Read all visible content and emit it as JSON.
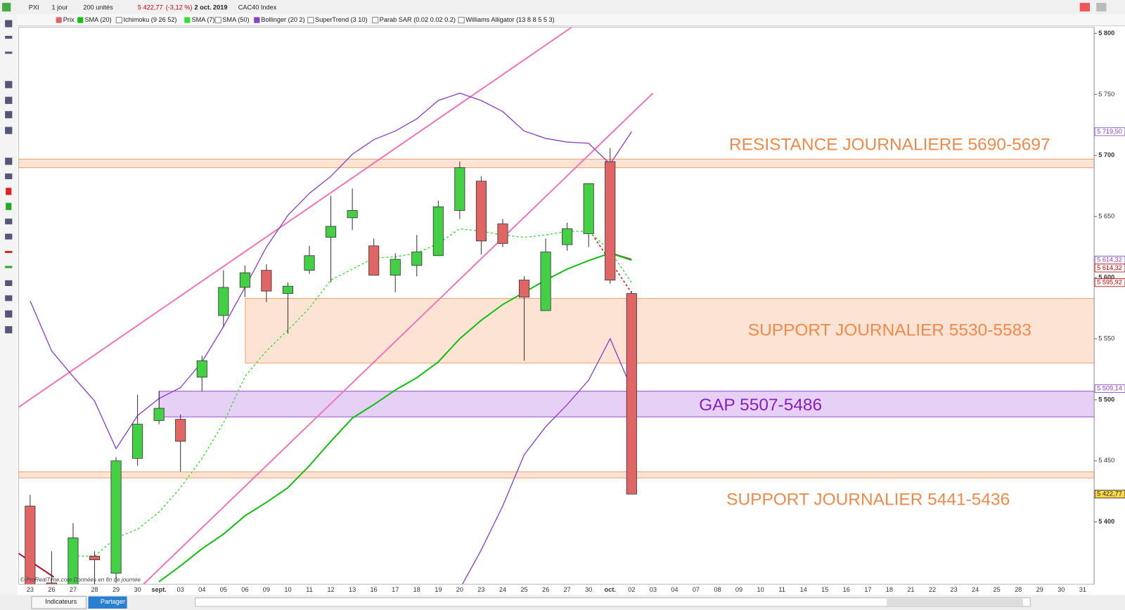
{
  "toolbar": {
    "symbol": "PXI",
    "period": "1 jour",
    "units": "200 unités",
    "price": "5 422,77",
    "change": "(-3,12 %)",
    "date": "2 oct. 2019",
    "instrument": "CAC40 Index",
    "indicators_off": [
      "Ichimoku (9 26 52)",
      "SMA (50)",
      "SuperTrend (3 10)",
      "Parab SAR (0.02 0.02 0.2)",
      "Williams Alligator (13 8 8 5 5 3)"
    ],
    "indicators_button": "Indicateurs",
    "share_button": "Partager"
  },
  "chart_data": {
    "type": "candlestick",
    "source": "© ProRealTime.com  Données en fin de journée",
    "categories": [
      "23",
      "26",
      "27",
      "28",
      "29",
      "30",
      "sept.",
      "03",
      "04",
      "05",
      "06",
      "09",
      "10",
      "11",
      "12",
      "13",
      "16",
      "17",
      "18",
      "19",
      "20",
      "23",
      "24",
      "25",
      "26",
      "27",
      "30",
      "oct.",
      "02",
      "03",
      "04",
      "07",
      "08",
      "09",
      "10",
      "11",
      "14",
      "15",
      "16",
      "17",
      "18",
      "21",
      "22",
      "23",
      "24",
      "25",
      "28",
      "29",
      "30",
      "31"
    ],
    "candles": {
      "name": "Prix",
      "up_color": "#44d044",
      "down_color": "#e06666",
      "open": [
        5413,
        5350,
        5340,
        5372,
        5358,
        5452,
        5483,
        5484,
        5518.5,
        5569,
        5592,
        5606,
        5587,
        5606,
        5633,
        5649,
        5626,
        5602,
        5610,
        5618,
        5655,
        5679,
        5644,
        5598,
        5573,
        5627,
        5636,
        5695,
        5587,
        null,
        null,
        null,
        null,
        null,
        null,
        null,
        null,
        null,
        null,
        null,
        null,
        null,
        null,
        null,
        null,
        null,
        null,
        null,
        null,
        null
      ],
      "high": [
        5422,
        5376,
        5399,
        5376,
        5453,
        5504,
        5507,
        5488,
        5536,
        5606,
        5610,
        5611,
        5596,
        5626,
        5667,
        5673,
        5632,
        5620,
        5635,
        5663,
        5695,
        5683,
        5648,
        5601,
        5632,
        5645,
        5677,
        5706,
        5589,
        null,
        null,
        null,
        null,
        null,
        null,
        null,
        null,
        null,
        null,
        null,
        null,
        null,
        null,
        null,
        null,
        null,
        null,
        null,
        null,
        null
      ],
      "low": [
        5340,
        5330,
        5335,
        5335,
        5350,
        5446,
        5480,
        5441,
        5507,
        5560,
        5584,
        5580,
        5554,
        5603,
        5596,
        5639,
        5602,
        5588,
        5601,
        5618,
        5648,
        5619,
        5625,
        5532,
        5573,
        5622,
        5625,
        5595,
        5422.77,
        null,
        null,
        null,
        null,
        null,
        null,
        null,
        null,
        null,
        null,
        null,
        null,
        null,
        null,
        null,
        null,
        null,
        null,
        null,
        null,
        null
      ],
      "close": [
        5345,
        5345,
        5387,
        5369,
        5450,
        5480,
        5493,
        5466,
        5532,
        5592,
        5604,
        5589,
        5593,
        5618,
        5642,
        5655,
        5602,
        5615,
        5621,
        5658,
        5690,
        5630,
        5628,
        5584,
        5621,
        5640,
        5677,
        5598,
        5422.77,
        null,
        null,
        null,
        null,
        null,
        null,
        null,
        null,
        null,
        null,
        null,
        null,
        null,
        null,
        null,
        null,
        null,
        null,
        null,
        null,
        null
      ]
    },
    "series": [
      {
        "name": "SMA (20)",
        "color": "#11c011",
        "style": "solid",
        "values": [
          null,
          null,
          null,
          null,
          null,
          null,
          5351,
          5364,
          5378,
          5390,
          5405,
          5416,
          5428,
          5446,
          5466,
          5485,
          5496,
          5508,
          5518,
          5531,
          5550,
          5565,
          5578,
          5588,
          5598,
          5607,
          5614,
          5620,
          5614.32,
          null,
          null,
          null,
          null,
          null,
          null,
          null,
          null,
          null,
          null,
          null,
          null,
          null,
          null,
          null,
          null,
          null,
          null,
          null,
          null,
          null
        ]
      },
      {
        "name": "SMA (7)",
        "color": "#33dd33",
        "style": "dashed",
        "values": [
          null,
          null,
          5372,
          5372,
          5387,
          5394,
          5408,
          5428,
          5452,
          5481,
          5519,
          5540,
          5557,
          5575,
          5598,
          5607,
          5616,
          5617,
          5620,
          5628,
          5640,
          5638,
          5635,
          5633,
          5635,
          5638,
          5638,
          5622,
          5595.92,
          null,
          null,
          null,
          null,
          null,
          null,
          null,
          null,
          null,
          null,
          null,
          null,
          null,
          null,
          null,
          null,
          null,
          null,
          null,
          null,
          null
        ]
      },
      {
        "name": "Bollinger (20 2)",
        "color": "#8a3fc8",
        "style": "solid",
        "values": [
          5581,
          5540,
          5519,
          5499,
          5460,
          5487,
          5501,
          5510,
          5531,
          5560,
          5592,
          5625,
          5651,
          5669,
          5683,
          5701,
          5713,
          5720,
          5730,
          5745,
          5751,
          5745,
          5736,
          5720,
          5714,
          5711,
          5710,
          5693,
          5719.5,
          null,
          null,
          null,
          null,
          null,
          null,
          null,
          null,
          null,
          null,
          null,
          null,
          null,
          null,
          null,
          null,
          null,
          null,
          null,
          null,
          null
        ],
        "lower": [
          null,
          null,
          null,
          null,
          null,
          null,
          null,
          null,
          null,
          null,
          null,
          null,
          null,
          null,
          null,
          null,
          null,
          null,
          null,
          null,
          5345,
          5377,
          5413,
          5455,
          5478,
          5496,
          5516,
          5550,
          5509.14,
          null,
          null,
          null,
          null,
          null,
          null,
          null,
          null,
          null,
          null,
          null,
          null,
          null,
          null,
          null,
          null,
          null,
          null,
          null,
          null,
          null
        ]
      }
    ],
    "zones": [
      {
        "from": 5690,
        "to": 5697,
        "color": "#fde3d3",
        "border": "#f0a070",
        "label": "RESISTANCE JOURNALIERE 5690-5697",
        "label_color": "#f08a4a"
      },
      {
        "from": 5530,
        "to": 5583,
        "color": "#fde3d3",
        "border": "#f0a070",
        "label": "SUPPORT JOURNALIER 5530-5583",
        "label_color": "#f08a4a"
      },
      {
        "from": 5486,
        "to": 5507,
        "color": "#e6d0f5",
        "border": "#9b4fd0",
        "label": "GAP 5507-5486",
        "label_color": "#8a1fbf"
      },
      {
        "from": 5436,
        "to": 5441,
        "color": "#fde3d3",
        "border": "#f0a070",
        "label": "SUPPORT JOURNALIER 5441-5436",
        "label_color": "#f08a4a"
      }
    ],
    "price_labels": [
      {
        "value": 5719.5,
        "label": "5 719,50",
        "color": "#8a3fc8",
        "bg": "#ffffff"
      },
      {
        "value": 5614.32,
        "label": "5 614,32",
        "color": "#8a3fc8",
        "bg": "#ffffff"
      },
      {
        "value": 5614.32,
        "label": "5 614,32",
        "color": "#c00000",
        "bg": "#ffffff"
      },
      {
        "value": 5595.92,
        "label": "5 595,92",
        "color": "#c00000",
        "bg": "#ffffff"
      },
      {
        "value": 5509.14,
        "label": "5 509,14",
        "color": "#8a3fc8",
        "bg": "#ffffff"
      },
      {
        "value": 5422.77,
        "label": "5 422,77",
        "color": "#222222",
        "bg": "#ffd84a"
      }
    ],
    "ylim": [
      5349,
      5805
    ],
    "yticks": [
      {
        "value": 5400,
        "label": "5 400"
      },
      {
        "value": 5450,
        "label": "5 450"
      },
      {
        "value": 5500,
        "label": "5 500"
      },
      {
        "value": 5550,
        "label": "5 550"
      },
      {
        "value": 5600,
        "label": "5 600"
      },
      {
        "value": 5650,
        "label": "5 650"
      },
      {
        "value": 5700,
        "label": "5 700"
      },
      {
        "value": 5750,
        "label": "5 750"
      },
      {
        "value": 5800,
        "label": "5 800"
      }
    ],
    "grid": false
  }
}
